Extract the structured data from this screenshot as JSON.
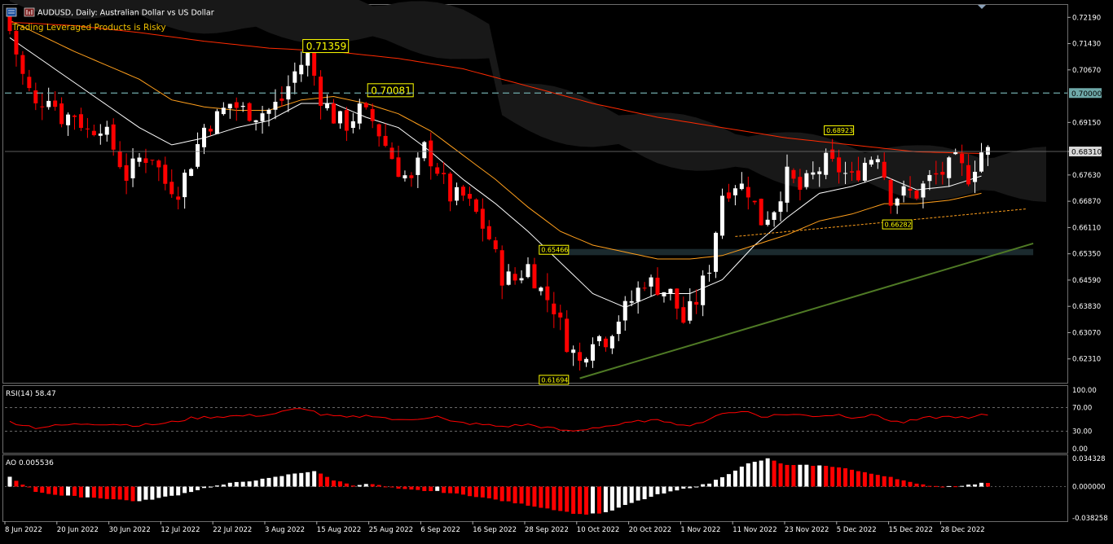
{
  "header": {
    "symbol_label": "AUDUSD, Daily:  Australian Dollar vs US Dollar",
    "risk_warning": "Trading Leveraged Products is Risky"
  },
  "colors": {
    "background": "#000000",
    "bull_candle": "#ffffff",
    "bear_candle": "#ff0000",
    "ma_fast": "#ffffff",
    "ma_mid": "#ff9f1c",
    "ma_slow": "#ff2a00",
    "trendline": "#4f7a25",
    "cloud": "#181818",
    "rsi_line": "#ff0000",
    "dash_level": "#6fa9a9",
    "label_border": "#ffff00",
    "label_text": "#ffff00"
  },
  "price_axis": {
    "ticks": [
      "0.72190",
      "0.71430",
      "0.70670",
      "0.69150",
      "0.68310",
      "0.67630",
      "0.66870",
      "0.66110",
      "0.65350",
      "0.64590",
      "0.63830",
      "0.63070",
      "0.62310"
    ],
    "tick_values": [
      0.7219,
      0.7143,
      0.7067,
      0.6915,
      0.6831,
      0.6763,
      0.6687,
      0.6611,
      0.6535,
      0.6459,
      0.6383,
      0.6307,
      0.6231
    ],
    "price_range": [
      0.6162,
      0.7255
    ],
    "current_price_label": "0.68310",
    "current_price": 0.6831,
    "level_label": "0.70000",
    "level_price": 0.7
  },
  "annotations": [
    {
      "text": "0.71359",
      "price": 0.71359,
      "bar": 46,
      "size": "large"
    },
    {
      "text": "0.70081",
      "price": 0.70081,
      "bar": 56,
      "size": "large"
    },
    {
      "text": "0.68923",
      "price": 0.68923,
      "bar": 128,
      "size": "small"
    },
    {
      "text": "0.65466",
      "price": 0.65466,
      "bar": 84,
      "size": "small"
    },
    {
      "text": "0.61694",
      "price": 0.61694,
      "bar": 84,
      "size": "small"
    },
    {
      "text": "0.66282",
      "price": 0.66282,
      "bar": 137,
      "size": "small"
    }
  ],
  "chart_data": [
    {
      "type": "candlestick",
      "title": "AUDUSD, Daily:  Australian Dollar vs US Dollar",
      "x_labels": [
        "8 Jun 2022",
        "20 Jun 2022",
        "30 Jun 2022",
        "12 Jul 2022",
        "22 Jul 2022",
        "3 Aug 2022",
        "15 Aug 2022",
        "25 Aug 2022",
        "6 Sep 2022",
        "16 Sep 2022",
        "28 Sep 2022",
        "10 Oct 2022",
        "20 Oct 2022",
        "1 Nov 2022",
        "11 Nov 2022",
        "23 Nov 2022",
        "5 Dec 2022",
        "15 Dec 2022",
        "28 Dec 2022"
      ],
      "ylim": [
        0.6162,
        0.7255
      ],
      "close_path": [
        [
          0,
          0.718
        ],
        [
          2,
          0.705
        ],
        [
          4,
          0.696
        ],
        [
          6,
          0.7
        ],
        [
          8,
          0.693
        ],
        [
          10,
          0.694
        ],
        [
          12,
          0.689
        ],
        [
          14,
          0.691
        ],
        [
          16,
          0.684
        ],
        [
          18,
          0.676
        ],
        [
          20,
          0.681
        ],
        [
          22,
          0.682
        ],
        [
          24,
          0.674
        ],
        [
          26,
          0.672
        ],
        [
          28,
          0.68
        ],
        [
          30,
          0.69
        ],
        [
          32,
          0.693
        ],
        [
          34,
          0.697
        ],
        [
          36,
          0.695
        ],
        [
          38,
          0.694
        ],
        [
          40,
          0.695
        ],
        [
          42,
          0.698
        ],
        [
          44,
          0.706
        ],
        [
          46,
          0.711
        ],
        [
          48,
          0.699
        ],
        [
          50,
          0.693
        ],
        [
          52,
          0.691
        ],
        [
          54,
          0.695
        ],
        [
          56,
          0.692
        ],
        [
          58,
          0.685
        ],
        [
          60,
          0.678
        ],
        [
          62,
          0.674
        ],
        [
          64,
          0.684
        ],
        [
          66,
          0.678
        ],
        [
          68,
          0.67
        ],
        [
          70,
          0.67
        ],
        [
          72,
          0.665
        ],
        [
          74,
          0.658
        ],
        [
          76,
          0.647
        ],
        [
          78,
          0.646
        ],
        [
          80,
          0.65
        ],
        [
          82,
          0.643
        ],
        [
          84,
          0.638
        ],
        [
          86,
          0.628
        ],
        [
          88,
          0.622
        ],
        [
          90,
          0.63
        ],
        [
          92,
          0.629
        ],
        [
          94,
          0.635
        ],
        [
          96,
          0.64
        ],
        [
          98,
          0.646
        ],
        [
          100,
          0.644
        ],
        [
          102,
          0.642
        ],
        [
          104,
          0.634
        ],
        [
          106,
          0.64
        ],
        [
          108,
          0.65
        ],
        [
          110,
          0.671
        ],
        [
          112,
          0.674
        ],
        [
          114,
          0.672
        ],
        [
          116,
          0.663
        ],
        [
          118,
          0.667
        ],
        [
          120,
          0.676
        ],
        [
          122,
          0.672
        ],
        [
          124,
          0.676
        ],
        [
          126,
          0.68
        ],
        [
          128,
          0.678
        ],
        [
          130,
          0.675
        ],
        [
          132,
          0.68
        ],
        [
          134,
          0.683
        ],
        [
          136,
          0.67
        ],
        [
          138,
          0.671
        ],
        [
          140,
          0.671
        ],
        [
          142,
          0.675
        ],
        [
          144,
          0.677
        ],
        [
          146,
          0.68
        ],
        [
          148,
          0.676
        ],
        [
          150,
          0.683
        ],
        [
          151,
          0.683
        ]
      ],
      "moving_averages": [
        {
          "name": "MA fast",
          "color": "#ffffff",
          "points": [
            [
              0,
              0.716
            ],
            [
              10,
              0.703
            ],
            [
              20,
              0.69
            ],
            [
              25,
              0.685
            ],
            [
              30,
              0.687
            ],
            [
              35,
              0.69
            ],
            [
              40,
              0.692
            ],
            [
              45,
              0.697
            ],
            [
              50,
              0.697
            ],
            [
              55,
              0.693
            ],
            [
              60,
              0.69
            ],
            [
              65,
              0.683
            ],
            [
              70,
              0.675
            ],
            [
              75,
              0.668
            ],
            [
              80,
              0.66
            ],
            [
              85,
              0.651
            ],
            [
              90,
              0.642
            ],
            [
              95,
              0.638
            ],
            [
              100,
              0.642
            ],
            [
              105,
              0.642
            ],
            [
              110,
              0.646
            ],
            [
              115,
              0.656
            ],
            [
              120,
              0.664
            ],
            [
              125,
              0.671
            ],
            [
              130,
              0.673
            ],
            [
              135,
              0.676
            ],
            [
              140,
              0.672
            ],
            [
              145,
              0.673
            ],
            [
              150,
              0.676
            ]
          ]
        },
        {
          "name": "MA mid",
          "color": "#ff9f1c",
          "points": [
            [
              0,
              0.721
            ],
            [
              10,
              0.712
            ],
            [
              20,
              0.704
            ],
            [
              25,
              0.698
            ],
            [
              30,
              0.696
            ],
            [
              35,
              0.695
            ],
            [
              40,
              0.695
            ],
            [
              45,
              0.698
            ],
            [
              50,
              0.699
            ],
            [
              55,
              0.697
            ],
            [
              60,
              0.694
            ],
            [
              65,
              0.689
            ],
            [
              70,
              0.682
            ],
            [
              75,
              0.675
            ],
            [
              80,
              0.667
            ],
            [
              85,
              0.66
            ],
            [
              90,
              0.656
            ],
            [
              95,
              0.654
            ],
            [
              100,
              0.652
            ],
            [
              105,
              0.652
            ],
            [
              110,
              0.653
            ],
            [
              115,
              0.656
            ],
            [
              120,
              0.659
            ],
            [
              125,
              0.663
            ],
            [
              130,
              0.665
            ],
            [
              135,
              0.668
            ],
            [
              140,
              0.668
            ],
            [
              145,
              0.669
            ],
            [
              150,
              0.671
            ]
          ]
        },
        {
          "name": "MA slow",
          "color": "#ff2a00",
          "points": [
            [
              0,
              0.7205
            ],
            [
              10,
              0.7195
            ],
            [
              20,
              0.7175
            ],
            [
              30,
              0.715
            ],
            [
              40,
              0.713
            ],
            [
              50,
              0.712
            ],
            [
              60,
              0.71
            ],
            [
              70,
              0.707
            ],
            [
              80,
              0.702
            ],
            [
              90,
              0.697
            ],
            [
              100,
              0.693
            ],
            [
              110,
              0.69
            ],
            [
              120,
              0.687
            ],
            [
              130,
              0.685
            ],
            [
              140,
              0.683
            ],
            [
              150,
              0.6825
            ]
          ]
        }
      ],
      "trendlines": [
        {
          "from": [
            88,
            0.6175
          ],
          "to": [
            158,
            0.6565
          ],
          "color": "#4f7a25"
        },
        {
          "from": [
            112,
            0.6585
          ],
          "to": [
            157,
            0.6665
          ],
          "color": "#ff9f1c"
        }
      ]
    },
    {
      "type": "line",
      "title": "RSI(14) 58.47",
      "ylim": [
        0,
        100
      ],
      "levels": [
        70,
        30
      ],
      "ticks": [
        "100.00",
        "70.00",
        "30.00",
        "0.00"
      ],
      "tick_values": [
        100,
        70,
        30,
        0
      ],
      "points": [
        [
          0,
          0.46
        ],
        [
          4,
          0.36
        ],
        [
          8,
          0.4
        ],
        [
          12,
          0.43
        ],
        [
          16,
          0.42
        ],
        [
          20,
          0.4
        ],
        [
          24,
          0.43
        ],
        [
          28,
          0.52
        ],
        [
          32,
          0.55
        ],
        [
          36,
          0.56
        ],
        [
          40,
          0.58
        ],
        [
          44,
          0.67
        ],
        [
          46,
          0.68
        ],
        [
          48,
          0.58
        ],
        [
          52,
          0.53
        ],
        [
          56,
          0.57
        ],
        [
          60,
          0.48
        ],
        [
          64,
          0.53
        ],
        [
          66,
          0.55
        ],
        [
          68,
          0.46
        ],
        [
          72,
          0.42
        ],
        [
          76,
          0.38
        ],
        [
          80,
          0.41
        ],
        [
          84,
          0.34
        ],
        [
          86,
          0.3
        ],
        [
          88,
          0.31
        ],
        [
          90,
          0.36
        ],
        [
          94,
          0.41
        ],
        [
          98,
          0.48
        ],
        [
          102,
          0.47
        ],
        [
          104,
          0.39
        ],
        [
          108,
          0.48
        ],
        [
          110,
          0.62
        ],
        [
          114,
          0.63
        ],
        [
          116,
          0.55
        ],
        [
          120,
          0.59
        ],
        [
          124,
          0.56
        ],
        [
          128,
          0.58
        ],
        [
          130,
          0.54
        ],
        [
          134,
          0.57
        ],
        [
          136,
          0.47
        ],
        [
          138,
          0.45
        ],
        [
          142,
          0.53
        ],
        [
          146,
          0.55
        ],
        [
          148,
          0.51
        ],
        [
          150,
          0.57
        ],
        [
          151,
          0.58
        ]
      ]
    },
    {
      "type": "bar",
      "title": "AO 0.005536",
      "ylim": [
        -0.038258,
        0.034328
      ],
      "ticks": [
        "0.034328",
        "0.000000",
        "-0.038258"
      ],
      "tick_values": [
        0.034328,
        0,
        -0.038258
      ],
      "profile": [
        [
          0,
          0.012
        ],
        [
          4,
          -0.006
        ],
        [
          8,
          -0.011
        ],
        [
          14,
          -0.014
        ],
        [
          20,
          -0.018
        ],
        [
          26,
          -0.01
        ],
        [
          30,
          -0.002
        ],
        [
          34,
          0.004
        ],
        [
          40,
          0.01
        ],
        [
          44,
          0.016
        ],
        [
          47,
          0.019
        ],
        [
          50,
          0.008
        ],
        [
          53,
          0.002
        ],
        [
          56,
          0.003
        ],
        [
          60,
          -0.003
        ],
        [
          66,
          -0.006
        ],
        [
          72,
          -0.012
        ],
        [
          78,
          -0.02
        ],
        [
          84,
          -0.028
        ],
        [
          88,
          -0.034
        ],
        [
          92,
          -0.032
        ],
        [
          96,
          -0.02
        ],
        [
          100,
          -0.01
        ],
        [
          104,
          -0.003
        ],
        [
          108,
          0.004
        ],
        [
          110,
          0.012
        ],
        [
          114,
          0.028
        ],
        [
          117,
          0.034
        ],
        [
          120,
          0.026
        ],
        [
          124,
          0.026
        ],
        [
          128,
          0.024
        ],
        [
          132,
          0.017
        ],
        [
          136,
          0.012
        ],
        [
          140,
          0.003
        ],
        [
          144,
          0.0
        ],
        [
          148,
          0.002
        ],
        [
          151,
          0.005
        ]
      ]
    }
  ]
}
